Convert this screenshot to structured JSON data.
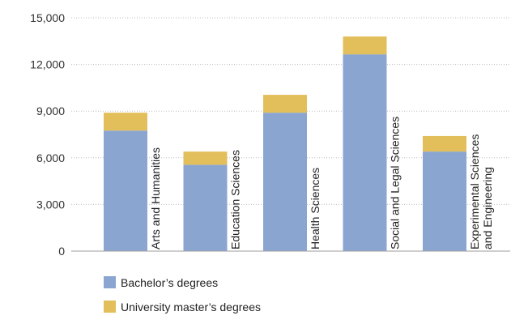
{
  "chart_data": {
    "type": "bar",
    "stacked": true,
    "categories": [
      [
        "Arts and Humanities"
      ],
      [
        "Education Sciences"
      ],
      [
        "Health Sciences"
      ],
      [
        "Social and Legal Sciences"
      ],
      [
        "Experimental Sciences",
        "and Engineering"
      ]
    ],
    "series": [
      {
        "name": "Bachelor’s degrees",
        "color": "#8aa6d0",
        "values": [
          7750,
          5550,
          8900,
          12650,
          6400
        ]
      },
      {
        "name": "University master’s degrees",
        "color": "#e3bf5c",
        "values": [
          1150,
          850,
          1150,
          1150,
          1000
        ]
      }
    ],
    "ylim": [
      0,
      15000
    ],
    "yticks": [
      0,
      3000,
      6000,
      9000,
      12000,
      15000
    ],
    "ytick_labels": [
      "0",
      "3,000",
      "6,000",
      "9,000",
      "12,000",
      "15,000"
    ],
    "grid": true,
    "legend_position": "bottom-left"
  }
}
